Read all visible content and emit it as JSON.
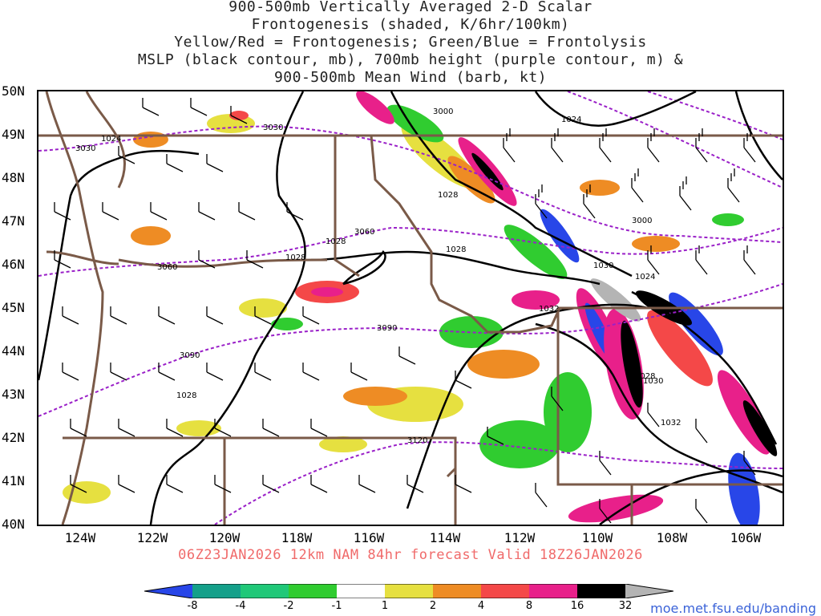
{
  "title_lines": [
    "900-500mb Vertically Averaged 2-D Scalar",
    "Frontogenesis (shaded, K/6hr/100km)",
    "Yellow/Red = Frontogenesis;  Green/Blue = Frontolysis",
    "MSLP (black contour, mb), 700mb height (purple contour, m) &",
    "900-500mb Mean Wind (barb, kt)"
  ],
  "lat_labels": [
    "50N",
    "49N",
    "48N",
    "47N",
    "46N",
    "45N",
    "44N",
    "43N",
    "42N",
    "41N",
    "40N"
  ],
  "lon_labels": [
    "124W",
    "122W",
    "120W",
    "118W",
    "116W",
    "114W",
    "112W",
    "110W",
    "108W",
    "106W"
  ],
  "footer": "06Z23JAN2026 12km NAM 84hr forecast Valid 18Z26JAN2026",
  "colorbar": {
    "labels": [
      "-8",
      "-4",
      "-2",
      "-1",
      "1",
      "2",
      "4",
      "8",
      "16",
      "32"
    ],
    "colors": [
      "#2846e8",
      "#14a08a",
      "#20c878",
      "#30cc30",
      "#ffffff",
      "#e6e040",
      "#ee8c24",
      "#f44848",
      "#e8208a",
      "#000000",
      "#b4b4b4"
    ]
  },
  "mslp_labels": [
    "1024",
    "1024",
    "1028",
    "1028",
    "1028",
    "1028",
    "1028",
    "1030",
    "1032",
    "1024",
    "1032",
    "1028",
    "1030",
    "1032"
  ],
  "height_labels": [
    "3030",
    "3030",
    "3000",
    "3060",
    "3060",
    "3090",
    "3090",
    "3120",
    "3000",
    "3030"
  ],
  "url": "moe.met.fsu.edu/banding"
}
